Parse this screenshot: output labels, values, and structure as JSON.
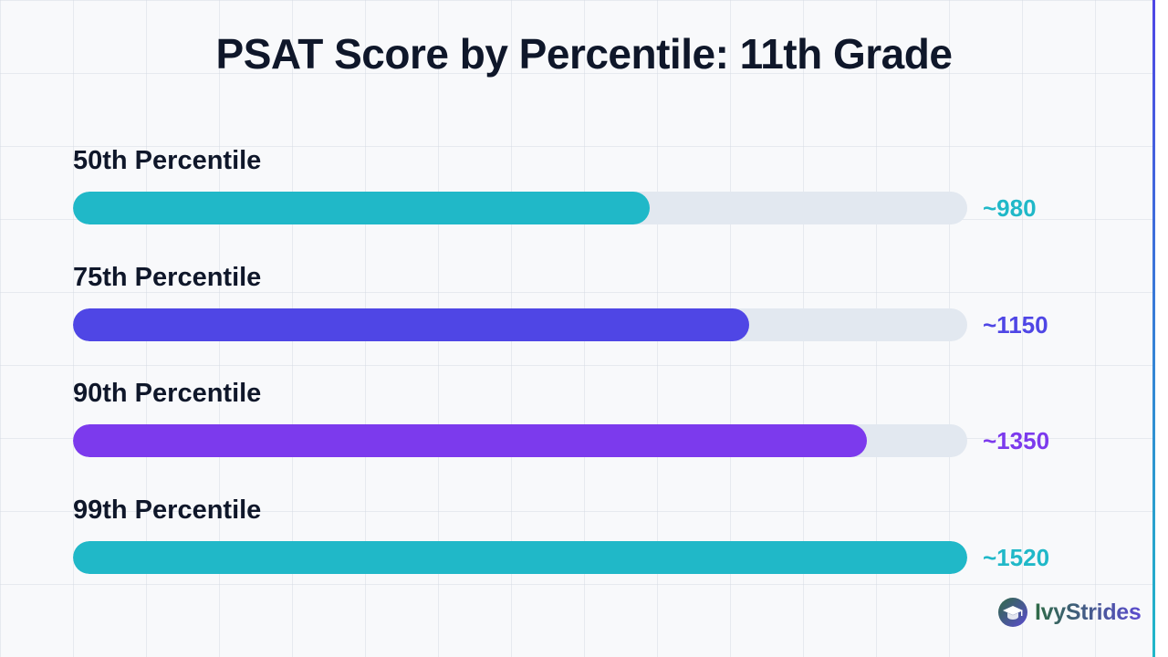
{
  "colors": {
    "teal": "#20b8c8",
    "indigo": "#4f46e5",
    "violet": "#7c3aed",
    "track": "#e2e8f0",
    "text": "#0f172a",
    "brand_green": "#2f6b46",
    "brand_purple": "#5b4bd0"
  },
  "brand": {
    "name": "IvyStrides",
    "icon": "graduation-cap-icon"
  },
  "chart_data": {
    "type": "bar",
    "orientation": "horizontal",
    "title": "PSAT Score by Percentile: 11th Grade",
    "xlabel": "",
    "ylabel": "",
    "xlim": [
      0,
      1520
    ],
    "grid": true,
    "categories": [
      "50th Percentile",
      "75th Percentile",
      "90th Percentile",
      "99th Percentile"
    ],
    "values": [
      980,
      1150,
      1350,
      1520
    ],
    "value_labels": [
      "~980",
      "~1150",
      "~1350",
      "~1520"
    ],
    "bar_colors": [
      "#20b8c8",
      "#4f46e5",
      "#7c3aed",
      "#20b8c8"
    ]
  }
}
